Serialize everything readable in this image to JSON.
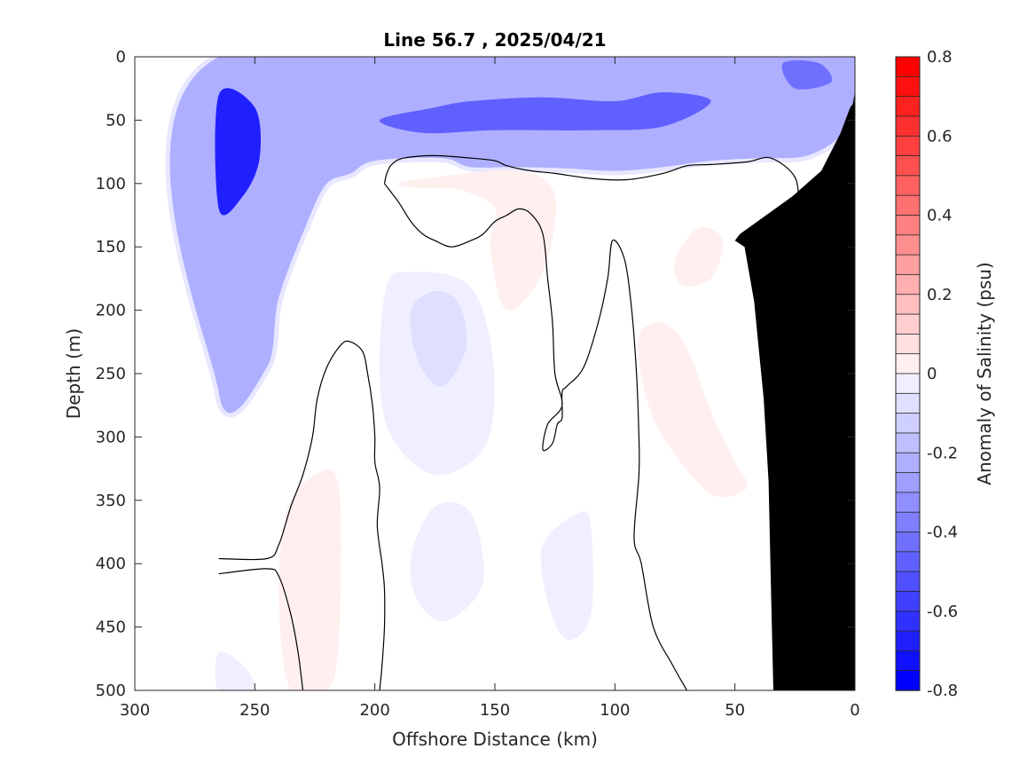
{
  "chart_data": {
    "type": "heatmap",
    "title": "Line 56.7 , 2025/04/21",
    "xlabel": "Offshore Distance (km)",
    "ylabel": "Depth (m)",
    "colorbar_label": "Anomaly of Salinity (psu)",
    "xlim": [
      300,
      0
    ],
    "ylim": [
      500,
      0
    ],
    "x_reversed": true,
    "y_reversed": true,
    "x_ticks": [
      300,
      250,
      200,
      150,
      100,
      50,
      0
    ],
    "y_ticks": [
      0,
      50,
      100,
      150,
      200,
      250,
      300,
      350,
      400,
      450,
      500
    ],
    "colorbar_ticks": [
      0.8,
      0.6,
      0.4,
      0.2,
      0,
      -0.2,
      -0.4,
      -0.6,
      -0.8
    ],
    "clim": [
      -0.8,
      0.8
    ],
    "contour_interval": 0.05,
    "zero_contour": true,
    "data_extent_km": [
      0,
      265
    ],
    "colormap": {
      "negative": "#0000ff",
      "zero": "#ffffff",
      "positive": "#ff0000"
    },
    "bathymetry": {
      "color": "#000000",
      "points": [
        [
          34,
          500
        ],
        [
          35,
          420
        ],
        [
          36,
          335
        ],
        [
          38,
          270
        ],
        [
          42,
          193
        ],
        [
          46,
          150
        ],
        [
          50,
          145
        ],
        [
          48,
          140
        ],
        [
          26,
          110
        ],
        [
          14,
          90
        ],
        [
          6,
          60
        ],
        [
          2,
          40
        ],
        [
          0,
          35
        ]
      ]
    },
    "regions": [
      {
        "label": "upper-negative",
        "value": -0.22,
        "points": [
          [
            265,
            0
          ],
          [
            0,
            0
          ],
          [
            0,
            30
          ],
          [
            5,
            60
          ],
          [
            20,
            78
          ],
          [
            40,
            80
          ],
          [
            60,
            82
          ],
          [
            80,
            87
          ],
          [
            100,
            90
          ],
          [
            120,
            88
          ],
          [
            140,
            87
          ],
          [
            160,
            87
          ],
          [
            172,
            80
          ],
          [
            200,
            82
          ],
          [
            210,
            92
          ],
          [
            220,
            100
          ],
          [
            228,
            130
          ],
          [
            240,
            190
          ],
          [
            245,
            245
          ],
          [
            265,
            265
          ]
        ]
      },
      {
        "label": "surface-strong-negative",
        "value": -0.5,
        "points": [
          [
            198,
            50
          ],
          [
            175,
            40
          ],
          [
            160,
            35
          ],
          [
            130,
            32
          ],
          [
            100,
            35
          ],
          [
            80,
            28
          ],
          [
            60,
            35
          ],
          [
            80,
            55
          ],
          [
            110,
            58
          ],
          [
            150,
            58
          ],
          [
            180,
            60
          ]
        ]
      },
      {
        "label": "west-core-negative",
        "value": -0.7,
        "points": [
          [
            265,
            30
          ],
          [
            250,
            40
          ],
          [
            248,
            80
          ],
          [
            255,
            110
          ],
          [
            265,
            120
          ]
        ]
      },
      {
        "label": "surface-east-negative",
        "value": -0.45,
        "points": [
          [
            30,
            5
          ],
          [
            15,
            5
          ],
          [
            10,
            20
          ],
          [
            25,
            25
          ]
        ]
      },
      {
        "label": "mid-negative-1",
        "value": -0.05,
        "points": [
          [
            195,
            180
          ],
          [
            185,
            170
          ],
          [
            165,
            175
          ],
          [
            155,
            200
          ],
          [
            150,
            260
          ],
          [
            155,
            310
          ],
          [
            175,
            330
          ],
          [
            193,
            300
          ],
          [
            198,
            250
          ]
        ]
      },
      {
        "label": "mid-negative-1-core",
        "value": -0.1,
        "points": [
          [
            185,
            200
          ],
          [
            175,
            185
          ],
          [
            165,
            195
          ],
          [
            162,
            230
          ],
          [
            172,
            260
          ],
          [
            182,
            240
          ]
        ]
      },
      {
        "label": "mid-negative-2",
        "value": -0.05,
        "points": [
          [
            185,
            395
          ],
          [
            175,
            355
          ],
          [
            160,
            360
          ],
          [
            155,
            415
          ],
          [
            170,
            445
          ],
          [
            182,
            430
          ]
        ]
      },
      {
        "label": "mid-negative-3",
        "value": -0.05,
        "points": [
          [
            130,
            385
          ],
          [
            115,
            360
          ],
          [
            110,
            370
          ],
          [
            110,
            440
          ],
          [
            120,
            460
          ],
          [
            128,
            430
          ]
        ]
      },
      {
        "label": "deep-negative-west",
        "value": -0.05,
        "points": [
          [
            265,
            470
          ],
          [
            255,
            480
          ],
          [
            250,
            500
          ],
          [
            265,
            500
          ]
        ]
      },
      {
        "label": "deep-positive-1",
        "value": 0.03,
        "points": [
          [
            237,
            360
          ],
          [
            225,
            330
          ],
          [
            215,
            340
          ],
          [
            215,
            460
          ],
          [
            220,
            500
          ],
          [
            235,
            500
          ],
          [
            240,
            430
          ]
        ]
      },
      {
        "label": "mid-positive-1",
        "value": 0.03,
        "points": [
          [
            190,
            100
          ],
          [
            175,
            95
          ],
          [
            140,
            90
          ],
          [
            125,
            110
          ],
          [
            130,
            170
          ],
          [
            145,
            200
          ],
          [
            152,
            150
          ],
          [
            150,
            120
          ],
          [
            165,
            105
          ],
          [
            185,
            103
          ]
        ]
      },
      {
        "label": "mid-positive-2",
        "value": 0.03,
        "points": [
          [
            90,
            220
          ],
          [
            80,
            210
          ],
          [
            70,
            230
          ],
          [
            60,
            280
          ],
          [
            50,
            320
          ],
          [
            45,
            340
          ],
          [
            60,
            345
          ],
          [
            80,
            300
          ],
          [
            88,
            260
          ]
        ]
      },
      {
        "label": "mid-positive-3",
        "value": 0.03,
        "points": [
          [
            75,
            160
          ],
          [
            65,
            135
          ],
          [
            55,
            145
          ],
          [
            60,
            175
          ],
          [
            72,
            180
          ]
        ]
      },
      {
        "label": "east-positive",
        "value": 0.03,
        "points": [
          [
            8,
            80
          ],
          [
            12,
            95
          ],
          [
            18,
            100
          ],
          [
            10,
            110
          ],
          [
            5,
            100
          ]
        ]
      }
    ],
    "zero_contour_lines": [
      [
        [
          265,
          396
        ],
        [
          245,
          396
        ],
        [
          240,
          385
        ],
        [
          235,
          355
        ],
        [
          230,
          330
        ],
        [
          226,
          300
        ],
        [
          224,
          270
        ],
        [
          220,
          245
        ],
        [
          214,
          227
        ],
        [
          210,
          225
        ],
        [
          205,
          233
        ],
        [
          203,
          250
        ],
        [
          201,
          275
        ],
        [
          200,
          300
        ],
        [
          200,
          320
        ],
        [
          198,
          340
        ],
        [
          199,
          370
        ],
        [
          197,
          400
        ],
        [
          196,
          420
        ],
        [
          196,
          450
        ],
        [
          197,
          480
        ],
        [
          198,
          500
        ]
      ],
      [
        [
          265,
          408
        ],
        [
          245,
          404
        ],
        [
          240,
          410
        ],
        [
          235,
          440
        ],
        [
          232,
          470
        ],
        [
          230,
          500
        ]
      ],
      [
        [
          196,
          100
        ],
        [
          195,
          92
        ],
        [
          193,
          85
        ],
        [
          188,
          80
        ],
        [
          175,
          78
        ],
        [
          160,
          80
        ],
        [
          150,
          82
        ],
        [
          145,
          86
        ],
        [
          135,
          90
        ],
        [
          125,
          92
        ],
        [
          110,
          96
        ],
        [
          95,
          97
        ],
        [
          80,
          92
        ],
        [
          70,
          86
        ],
        [
          60,
          85
        ],
        [
          45,
          83
        ],
        [
          35,
          80
        ],
        [
          25,
          95
        ],
        [
          23,
          120
        ],
        [
          20,
          125
        ],
        [
          12,
          105
        ],
        [
          10,
          90
        ],
        [
          5,
          75
        ],
        [
          2,
          50
        ],
        [
          0,
          30
        ]
      ],
      [
        [
          196,
          100
        ],
        [
          194,
          105
        ],
        [
          190,
          115
        ],
        [
          185,
          130
        ],
        [
          180,
          140
        ],
        [
          175,
          145
        ],
        [
          168,
          150
        ],
        [
          160,
          145
        ],
        [
          155,
          140
        ],
        [
          150,
          130
        ],
        [
          145,
          125
        ],
        [
          140,
          120
        ],
        [
          135,
          124
        ],
        [
          130,
          140
        ],
        [
          128,
          175
        ],
        [
          126,
          210
        ],
        [
          125,
          250
        ],
        [
          122,
          275
        ],
        [
          128,
          290
        ],
        [
          130,
          310
        ],
        [
          126,
          305
        ],
        [
          124,
          290
        ],
        [
          122,
          285
        ],
        [
          122,
          265
        ],
        [
          120,
          260
        ],
        [
          113,
          245
        ],
        [
          107,
          210
        ],
        [
          103,
          175
        ],
        [
          101,
          145
        ],
        [
          96,
          160
        ],
        [
          93,
          200
        ],
        [
          91,
          250
        ],
        [
          90,
          300
        ],
        [
          90,
          330
        ],
        [
          92,
          380
        ],
        [
          89,
          400
        ],
        [
          84,
          450
        ],
        [
          76,
          480
        ],
        [
          70,
          500
        ]
      ]
    ]
  }
}
